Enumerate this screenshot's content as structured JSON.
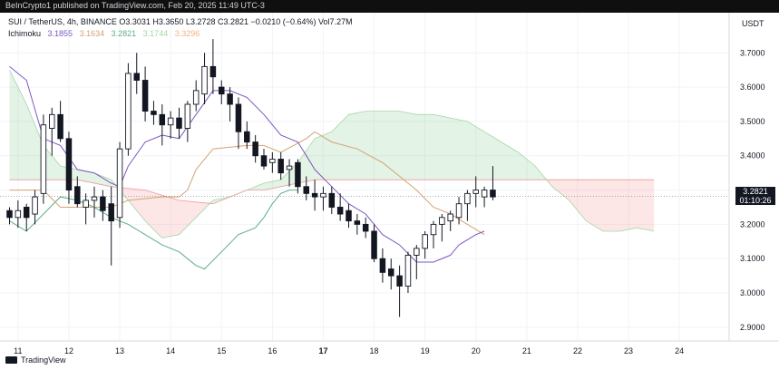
{
  "header": {
    "text": "BeInCrypto1 published on TradingView.com, Feb 20, 2025 11:49 UTC-3"
  },
  "legend": {
    "line1": "SUI / TetherUS, 4h, BINANCE  O3.3031  H3.3650  L3.2728  C3.2821  −0.0210 (−0.64%)  Vol7.27M",
    "ichimoku_label": "Ichimoku",
    "values": [
      "3.1855",
      "3.1634",
      "3.2821",
      "3.1744",
      "3.3296"
    ]
  },
  "currency": "USDT",
  "price_tag": {
    "price": "3.2821",
    "countdown": "01:10:26"
  },
  "footer": {
    "brand": "TradingView"
  },
  "colors": {
    "bull": "#131722",
    "bear": "#131722",
    "conversion": "#7e57c2",
    "base": "#d4a373",
    "lagging": "#5fae87",
    "cloud_bull": "rgba(127,200,140,0.22)",
    "cloud_bear": "rgba(244,143,143,0.22)",
    "span_a_line": "#a5d6a7",
    "span_b_line": "#ef9a9a"
  },
  "chart_data": {
    "type": "candlestick",
    "ylim": [
      2.86,
      3.78
    ],
    "x_ticks": [
      {
        "label": "11",
        "bar": 1
      },
      {
        "label": "12",
        "bar": 7
      },
      {
        "label": "13",
        "bar": 13
      },
      {
        "label": "14",
        "bar": 19
      },
      {
        "label": "15",
        "bar": 25
      },
      {
        "label": "16",
        "bar": 31
      },
      {
        "label": "17",
        "bar": 37
      },
      {
        "label": "18",
        "bar": 43
      },
      {
        "label": "19",
        "bar": 49
      },
      {
        "label": "20",
        "bar": 55
      },
      {
        "label": "21",
        "bar": 61
      },
      {
        "label": "22",
        "bar": 67
      },
      {
        "label": "23",
        "bar": 73
      },
      {
        "label": "24",
        "bar": 79
      }
    ],
    "y_ticks": [
      "3.7000",
      "3.6000",
      "3.5000",
      "3.4000",
      "3.3000",
      "3.2000",
      "3.1000",
      "3.0000",
      "2.9000"
    ],
    "y_values": [
      3.7,
      3.6,
      3.5,
      3.4,
      3.3,
      3.2,
      3.1,
      3.0,
      2.9
    ],
    "last_close": 3.2821,
    "candles": [
      [
        3.24,
        3.25,
        3.2,
        3.22
      ],
      [
        3.22,
        3.27,
        3.19,
        3.24
      ],
      [
        3.25,
        3.26,
        3.18,
        3.22
      ],
      [
        3.23,
        3.3,
        3.2,
        3.28
      ],
      [
        3.29,
        3.52,
        3.26,
        3.49
      ],
      [
        3.48,
        3.54,
        3.4,
        3.52
      ],
      [
        3.52,
        3.56,
        3.44,
        3.45
      ],
      [
        3.45,
        3.47,
        3.26,
        3.3
      ],
      [
        3.31,
        3.34,
        3.25,
        3.26
      ],
      [
        3.25,
        3.29,
        3.2,
        3.27
      ],
      [
        3.27,
        3.31,
        3.22,
        3.28
      ],
      [
        3.28,
        3.3,
        3.21,
        3.24
      ],
      [
        3.26,
        3.31,
        3.08,
        3.21
      ],
      [
        3.22,
        3.44,
        3.19,
        3.42
      ],
      [
        3.42,
        3.67,
        3.4,
        3.64
      ],
      [
        3.64,
        3.7,
        3.58,
        3.62
      ],
      [
        3.62,
        3.66,
        3.5,
        3.53
      ],
      [
        3.53,
        3.56,
        3.49,
        3.52
      ],
      [
        3.52,
        3.55,
        3.43,
        3.49
      ],
      [
        3.49,
        3.53,
        3.45,
        3.51
      ],
      [
        3.51,
        3.54,
        3.45,
        3.48
      ],
      [
        3.48,
        3.56,
        3.44,
        3.55
      ],
      [
        3.55,
        3.62,
        3.53,
        3.59
      ],
      [
        3.58,
        3.7,
        3.55,
        3.66
      ],
      [
        3.66,
        3.74,
        3.58,
        3.63
      ],
      [
        3.6,
        3.62,
        3.55,
        3.58
      ],
      [
        3.58,
        3.6,
        3.5,
        3.55
      ],
      [
        3.55,
        3.57,
        3.42,
        3.47
      ],
      [
        3.47,
        3.5,
        3.42,
        3.44
      ],
      [
        3.44,
        3.46,
        3.38,
        3.4
      ],
      [
        3.4,
        3.42,
        3.36,
        3.37
      ],
      [
        3.38,
        3.41,
        3.35,
        3.39
      ],
      [
        3.39,
        3.41,
        3.33,
        3.35
      ],
      [
        3.36,
        3.39,
        3.31,
        3.37
      ],
      [
        3.38,
        3.39,
        3.29,
        3.31
      ],
      [
        3.31,
        3.34,
        3.27,
        3.29
      ],
      [
        3.29,
        3.33,
        3.24,
        3.28
      ],
      [
        3.28,
        3.31,
        3.24,
        3.29
      ],
      [
        3.29,
        3.31,
        3.23,
        3.25
      ],
      [
        3.25,
        3.29,
        3.21,
        3.23
      ],
      [
        3.24,
        3.26,
        3.19,
        3.21
      ],
      [
        3.21,
        3.23,
        3.17,
        3.2
      ],
      [
        3.2,
        3.22,
        3.16,
        3.18
      ],
      [
        3.18,
        3.2,
        3.09,
        3.1
      ],
      [
        3.1,
        3.13,
        3.03,
        3.06
      ],
      [
        3.07,
        3.1,
        3.01,
        3.05
      ],
      [
        3.05,
        3.08,
        2.93,
        3.02
      ],
      [
        3.02,
        3.12,
        3.0,
        3.11
      ],
      [
        3.11,
        3.14,
        3.04,
        3.13
      ],
      [
        3.13,
        3.18,
        3.1,
        3.17
      ],
      [
        3.17,
        3.21,
        3.13,
        3.2
      ],
      [
        3.2,
        3.23,
        3.15,
        3.22
      ],
      [
        3.21,
        3.24,
        3.18,
        3.23
      ],
      [
        3.22,
        3.28,
        3.2,
        3.26
      ],
      [
        3.26,
        3.3,
        3.21,
        3.29
      ],
      [
        3.29,
        3.34,
        3.25,
        3.3
      ],
      [
        3.28,
        3.31,
        3.25,
        3.3
      ],
      [
        3.3,
        3.37,
        3.27,
        3.28
      ]
    ],
    "tenkan": [
      [
        0,
        3.66
      ],
      [
        2,
        3.62
      ],
      [
        4,
        3.45
      ],
      [
        6,
        3.43
      ],
      [
        8,
        3.36
      ],
      [
        10,
        3.35
      ],
      [
        12,
        3.32
      ],
      [
        13,
        3.31
      ],
      [
        14,
        3.37
      ],
      [
        16,
        3.44
      ],
      [
        18,
        3.46
      ],
      [
        20,
        3.45
      ],
      [
        22,
        3.52
      ],
      [
        24,
        3.59
      ],
      [
        26,
        3.59
      ],
      [
        28,
        3.57
      ],
      [
        30,
        3.52
      ],
      [
        32,
        3.46
      ],
      [
        34,
        3.44
      ],
      [
        35,
        3.4
      ],
      [
        36,
        3.36
      ],
      [
        38,
        3.31
      ],
      [
        40,
        3.26
      ],
      [
        42,
        3.23
      ],
      [
        44,
        3.17
      ],
      [
        46,
        3.14
      ],
      [
        48,
        3.09
      ],
      [
        50,
        3.09
      ],
      [
        52,
        3.11
      ],
      [
        53,
        3.14
      ],
      [
        55,
        3.17
      ],
      [
        56,
        3.18
      ]
    ],
    "kijun": [
      [
        0,
        3.3
      ],
      [
        4,
        3.3
      ],
      [
        6,
        3.25
      ],
      [
        12,
        3.25
      ],
      [
        14,
        3.27
      ],
      [
        18,
        3.28
      ],
      [
        20,
        3.28
      ],
      [
        21,
        3.3
      ],
      [
        22,
        3.36
      ],
      [
        24,
        3.42
      ],
      [
        28,
        3.43
      ],
      [
        30,
        3.43
      ],
      [
        32,
        3.41
      ],
      [
        35,
        3.45
      ],
      [
        36,
        3.47
      ],
      [
        38,
        3.44
      ],
      [
        41,
        3.42
      ],
      [
        44,
        3.38
      ],
      [
        46,
        3.34
      ],
      [
        48,
        3.3
      ],
      [
        50,
        3.25
      ],
      [
        52,
        3.23
      ],
      [
        54,
        3.2
      ],
      [
        56,
        3.17
      ]
    ],
    "chikou": [
      [
        0,
        3.21
      ],
      [
        2,
        3.18
      ],
      [
        4,
        3.23
      ],
      [
        6,
        3.28
      ],
      [
        8,
        3.27
      ],
      [
        10,
        3.25
      ],
      [
        12,
        3.22
      ],
      [
        14,
        3.2
      ],
      [
        16,
        3.17
      ],
      [
        18,
        3.14
      ],
      [
        20,
        3.12
      ],
      [
        22,
        3.08
      ],
      [
        23,
        3.07
      ],
      [
        25,
        3.12
      ],
      [
        27,
        3.17
      ],
      [
        29,
        3.19
      ],
      [
        30,
        3.22
      ],
      [
        31,
        3.26
      ],
      [
        32,
        3.29
      ],
      [
        33,
        3.3
      ],
      [
        34,
        3.3
      ]
    ],
    "span_a": [
      [
        0,
        3.65
      ],
      [
        2,
        3.55
      ],
      [
        4,
        3.43
      ],
      [
        6,
        3.37
      ],
      [
        8,
        3.36
      ],
      [
        10,
        3.35
      ],
      [
        12,
        3.33
      ],
      [
        14,
        3.27
      ],
      [
        16,
        3.21
      ],
      [
        18,
        3.16
      ],
      [
        20,
        3.17
      ],
      [
        22,
        3.22
      ],
      [
        24,
        3.27
      ],
      [
        26,
        3.28
      ],
      [
        28,
        3.3
      ],
      [
        30,
        3.32
      ],
      [
        32,
        3.33
      ],
      [
        34,
        3.38
      ],
      [
        36,
        3.45
      ],
      [
        38,
        3.47
      ],
      [
        40,
        3.52
      ],
      [
        42,
        3.53
      ],
      [
        44,
        3.53
      ],
      [
        46,
        3.53
      ],
      [
        48,
        3.52
      ],
      [
        50,
        3.52
      ],
      [
        52,
        3.51
      ],
      [
        54,
        3.5
      ],
      [
        56,
        3.47
      ],
      [
        58,
        3.44
      ],
      [
        60,
        3.41
      ],
      [
        62,
        3.37
      ],
      [
        64,
        3.31
      ],
      [
        66,
        3.27
      ],
      [
        68,
        3.21
      ],
      [
        70,
        3.18
      ],
      [
        72,
        3.18
      ],
      [
        74,
        3.19
      ],
      [
        76,
        3.18
      ]
    ],
    "span_b": [
      [
        0,
        3.33
      ],
      [
        4,
        3.33
      ],
      [
        8,
        3.33
      ],
      [
        12,
        3.31
      ],
      [
        16,
        3.3
      ],
      [
        20,
        3.27
      ],
      [
        24,
        3.26
      ],
      [
        26,
        3.28
      ],
      [
        28,
        3.3
      ],
      [
        30,
        3.3
      ],
      [
        32,
        3.31
      ],
      [
        34,
        3.32
      ],
      [
        36,
        3.33
      ],
      [
        38,
        3.33
      ],
      [
        40,
        3.33
      ],
      [
        42,
        3.33
      ],
      [
        44,
        3.33
      ],
      [
        46,
        3.33
      ],
      [
        48,
        3.33
      ],
      [
        50,
        3.33
      ],
      [
        52,
        3.33
      ],
      [
        54,
        3.33
      ],
      [
        56,
        3.33
      ],
      [
        58,
        3.33
      ],
      [
        60,
        3.33
      ],
      [
        62,
        3.33
      ],
      [
        64,
        3.33
      ],
      [
        66,
        3.33
      ],
      [
        68,
        3.33
      ],
      [
        70,
        3.33
      ],
      [
        72,
        3.33
      ],
      [
        74,
        3.33
      ],
      [
        76,
        3.33
      ]
    ]
  }
}
